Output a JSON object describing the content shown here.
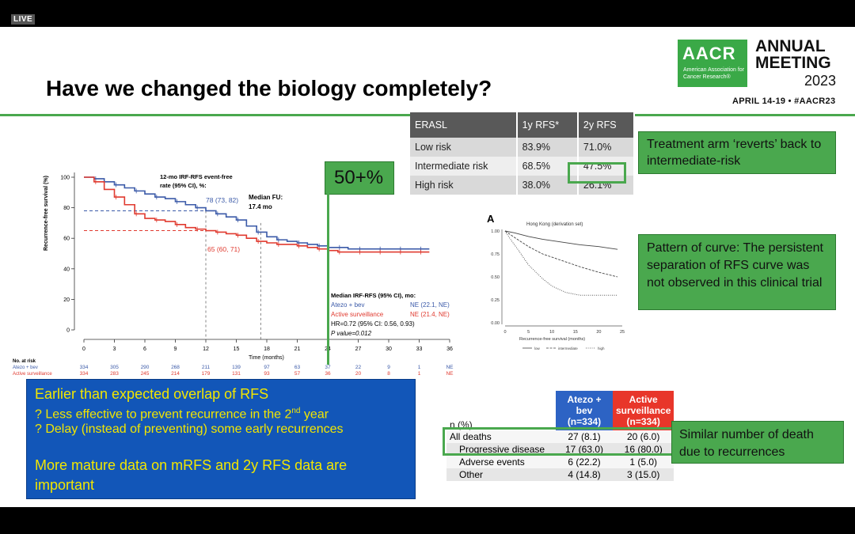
{
  "live_label": "LIVE",
  "slide_title": "Have we changed the biology completely?",
  "conference": {
    "org_short": "AACR",
    "org_full": "American Association for Cancer Research®",
    "meeting_line1": "ANNUAL",
    "meeting_line2": "MEETING",
    "year": "2023",
    "dates": "APRIL 14-19 • #AACR23",
    "brand_color": "#3aa947"
  },
  "erasl_table": {
    "headers": [
      "ERASL",
      "1y RFS*",
      "2y RFS"
    ],
    "rows": [
      [
        "Low risk",
        "83.9%",
        "71.0%"
      ],
      [
        "Intermediate risk",
        "68.5%",
        "47.5%"
      ],
      [
        "High risk",
        "38.0%",
        "26.1%"
      ]
    ]
  },
  "callouts": {
    "treatment": "Treatment arm ‘reverts’ back to intermediate-risk",
    "pattern": "Pattern of curve: The persistent separation of RFS curve was not observed in this clinical trial",
    "similar": "Similar number of death due to recurrences",
    "fifty_plus": "50+%"
  },
  "blue_box": {
    "line1": "Earlier than expected overlap of RFS",
    "line2_pre": "? Less effective to prevent recurrence in the 2",
    "line2_sup": "nd",
    "line2_post": " year",
    "line3": "? Delay (instead of preventing) some early recurrences",
    "line4": "More mature data on mRFS and 2y RFS data are important",
    "bg_color": "#1256b8",
    "text_color": "#f2e600"
  },
  "deaths_table": {
    "n_header": "n (%)",
    "col1_header": "Atezo + bev (n=334)",
    "col2_header": "Active surveillance (n=334)",
    "rows": [
      {
        "label": "All deaths",
        "a": "27 (8.1)",
        "b": "20 (6.0)"
      },
      {
        "label": "Progressive disease",
        "a": "17 (63.0)",
        "b": "16 (80.0)"
      },
      {
        "label": "Adverse events",
        "a": "6 (22.2)",
        "b": "1 (5.0)"
      },
      {
        "label": "Other",
        "a": "4 (14.8)",
        "b": "3 (15.0)"
      }
    ]
  },
  "chart_data": [
    {
      "type": "line",
      "title": "",
      "ylabel": "Recurrence-free survival (%)",
      "xlabel": "Time (months)",
      "xlim": [
        0,
        36
      ],
      "ylim": [
        0,
        100
      ],
      "x_ticks": [
        0,
        3,
        6,
        9,
        12,
        15,
        18,
        21,
        24,
        27,
        30,
        33,
        36
      ],
      "y_ticks": [
        0,
        20,
        40,
        60,
        80,
        100
      ],
      "series": [
        {
          "name": "Atezo + bev",
          "color": "#3b5aa8",
          "x": [
            0,
            1,
            2,
            3,
            4,
            5,
            6,
            7,
            8,
            9,
            10,
            11,
            12,
            13,
            14,
            15,
            16,
            17,
            18,
            19,
            20,
            21,
            22,
            23,
            24,
            25,
            26,
            27,
            28,
            29,
            30,
            31,
            32,
            33
          ],
          "y": [
            100,
            99,
            97,
            95,
            93,
            91,
            89,
            87,
            86,
            84,
            82,
            80,
            78,
            76,
            74,
            72,
            68,
            64,
            61,
            59,
            58,
            57,
            56,
            55,
            54,
            54,
            53,
            53,
            53,
            53,
            53,
            53,
            53,
            53
          ]
        },
        {
          "name": "Active surveillance",
          "color": "#e03a2f",
          "x": [
            0,
            1,
            2,
            3,
            4,
            5,
            6,
            7,
            8,
            9,
            10,
            11,
            12,
            13,
            14,
            15,
            16,
            17,
            18,
            19,
            20,
            21,
            22,
            23,
            24,
            25,
            26,
            27,
            28,
            29,
            30,
            31,
            32,
            33
          ],
          "y": [
            100,
            97,
            92,
            87,
            82,
            76,
            73,
            72,
            71,
            69,
            67,
            66,
            65,
            64,
            63,
            62,
            60,
            58,
            57,
            56,
            56,
            55,
            54,
            53,
            52,
            51,
            51,
            51,
            51,
            51,
            51,
            51,
            51,
            51
          ]
        }
      ],
      "reference_lines": {
        "blue_y": 78,
        "red_y": 65,
        "x_12mo": 12,
        "x_median_fu": 17.4
      },
      "annotations": {
        "rate_title": "12-mo IRF-RFS event-free rate (95% CI), %:",
        "blue_ci": "78 (73, 82)",
        "red_ci": "65 (60, 71)",
        "median_fu": "Median FU: 17.4 mo",
        "median_title": "Median IRF-RFS (95% CI), mo:",
        "atezo_label": "Atezo + bev",
        "atezo_value": "NE (22.1, NE)",
        "active_label": "Active surveillance",
        "active_value": "NE (21.4, NE)",
        "hr": "HR=0.72 (95% CI: 0.56, 0.93)",
        "p": "P value=0.012"
      },
      "at_risk": {
        "title": "No. at risk",
        "atezo_label": "Atezo + bev",
        "atezo": [
          "334",
          "305",
          "290",
          "268",
          "211",
          "139",
          "97",
          "63",
          "37",
          "22",
          "9",
          "1",
          "NE"
        ],
        "active_label": "Active surveillance",
        "active": [
          "334",
          "283",
          "245",
          "214",
          "179",
          "131",
          "93",
          "57",
          "36",
          "20",
          "8",
          "1",
          "NE"
        ]
      }
    },
    {
      "type": "line",
      "panel_label": "A",
      "title": "Hong Kong (derivation set)",
      "xlabel": "Recurrence-free survival (months)",
      "xlim": [
        0,
        25
      ],
      "ylim": [
        0,
        1
      ],
      "x_ticks": [
        0,
        5,
        10,
        15,
        20,
        25
      ],
      "y_ticks": [
        "0.00",
        "0.25",
        "0.50",
        "0.75",
        "1.00"
      ],
      "series": [
        {
          "name": "low",
          "x": [
            0,
            2,
            5,
            8,
            12,
            16,
            20,
            24
          ],
          "y": [
            1.0,
            0.98,
            0.94,
            0.91,
            0.88,
            0.85,
            0.83,
            0.8
          ]
        },
        {
          "name": "intermediate",
          "x": [
            0,
            2,
            5,
            8,
            12,
            16,
            20,
            24
          ],
          "y": [
            1.0,
            0.93,
            0.83,
            0.75,
            0.68,
            0.61,
            0.55,
            0.5
          ]
        },
        {
          "name": "high",
          "x": [
            0,
            1,
            3,
            5,
            8,
            10,
            13,
            16,
            20,
            24
          ],
          "y": [
            1.0,
            0.92,
            0.78,
            0.63,
            0.48,
            0.4,
            0.33,
            0.3,
            0.3,
            0.3
          ]
        }
      ]
    }
  ]
}
